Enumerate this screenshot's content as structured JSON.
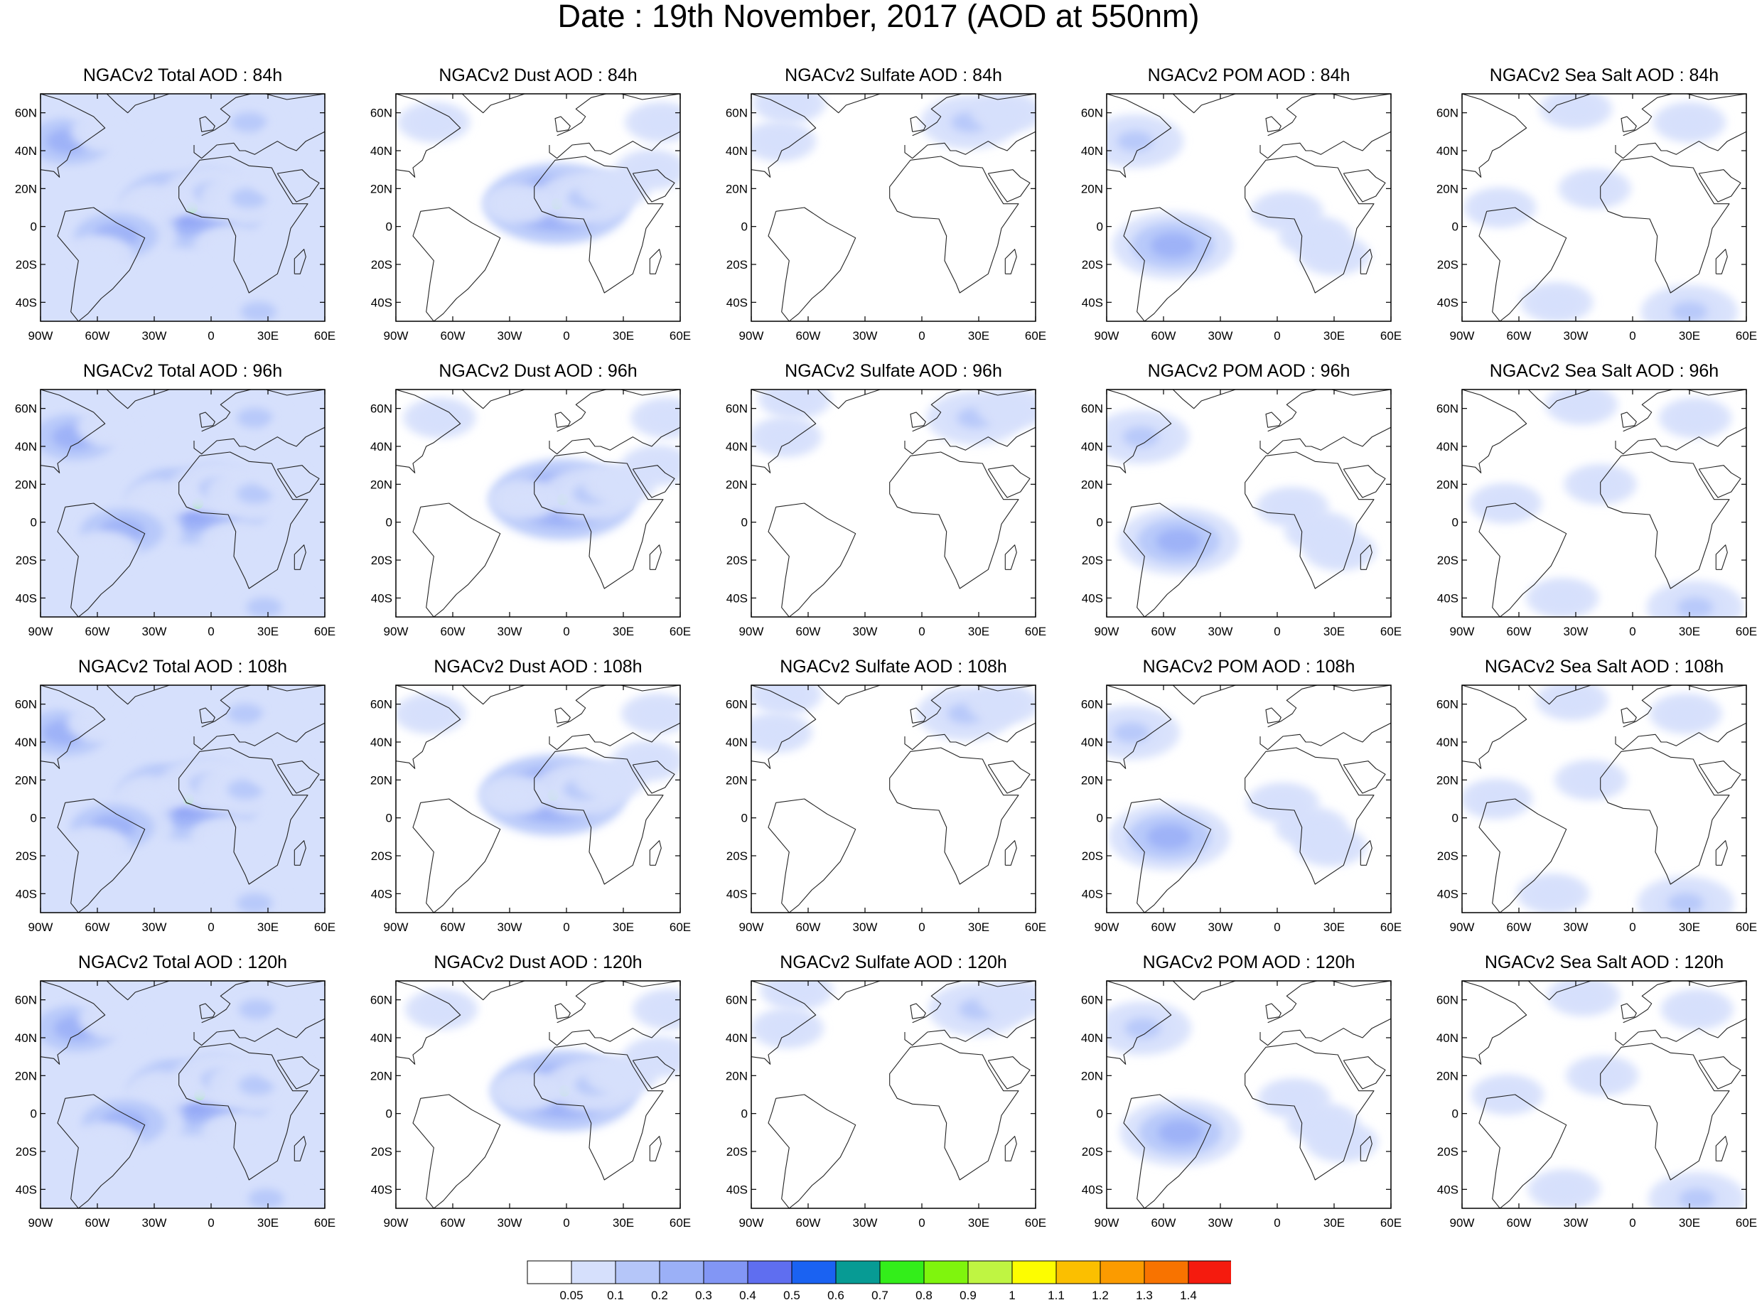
{
  "figure": {
    "title": "Date : 19th November, 2017 (AOD at 550nm)"
  },
  "map_axes": {
    "lon_labels": [
      "90W",
      "60W",
      "30W",
      "0",
      "30E",
      "60E"
    ],
    "lon_values": [
      -90,
      -60,
      -30,
      0,
      30,
      60
    ],
    "lat_labels": [
      "60N",
      "40N",
      "20N",
      "0",
      "20S",
      "40S"
    ],
    "lat_values": [
      60,
      40,
      20,
      0,
      -20,
      -40
    ],
    "lon_range": [
      -90,
      60
    ],
    "lat_range": [
      -50,
      70
    ]
  },
  "panels": [
    {
      "title": "NGACv2 Total AOD : 84h",
      "species": "total",
      "lead_hours": 84
    },
    {
      "title": "NGACv2 Dust AOD : 84h",
      "species": "dust",
      "lead_hours": 84
    },
    {
      "title": "NGACv2 Sulfate AOD : 84h",
      "species": "sulfate",
      "lead_hours": 84
    },
    {
      "title": "NGACv2 POM AOD : 84h",
      "species": "pom",
      "lead_hours": 84
    },
    {
      "title": "NGACv2 Sea Salt AOD : 84h",
      "species": "seasalt",
      "lead_hours": 84
    },
    {
      "title": "NGACv2 Total AOD : 96h",
      "species": "total",
      "lead_hours": 96
    },
    {
      "title": "NGACv2 Dust AOD : 96h",
      "species": "dust",
      "lead_hours": 96
    },
    {
      "title": "NGACv2 Sulfate AOD : 96h",
      "species": "sulfate",
      "lead_hours": 96
    },
    {
      "title": "NGACv2 POM AOD : 96h",
      "species": "pom",
      "lead_hours": 96
    },
    {
      "title": "NGACv2 Sea Salt AOD : 96h",
      "species": "seasalt",
      "lead_hours": 96
    },
    {
      "title": "NGACv2 Total AOD : 108h",
      "species": "total",
      "lead_hours": 108
    },
    {
      "title": "NGACv2 Dust AOD : 108h",
      "species": "dust",
      "lead_hours": 108
    },
    {
      "title": "NGACv2 Sulfate AOD : 108h",
      "species": "sulfate",
      "lead_hours": 108
    },
    {
      "title": "NGACv2 POM AOD : 108h",
      "species": "pom",
      "lead_hours": 108
    },
    {
      "title": "NGACv2 Sea Salt AOD : 108h",
      "species": "seasalt",
      "lead_hours": 108
    },
    {
      "title": "NGACv2 Total AOD : 120h",
      "species": "total",
      "lead_hours": 120
    },
    {
      "title": "NGACv2 Dust AOD : 120h",
      "species": "dust",
      "lead_hours": 120
    },
    {
      "title": "NGACv2 Sulfate AOD : 120h",
      "species": "sulfate",
      "lead_hours": 120
    },
    {
      "title": "NGACv2 POM AOD : 120h",
      "species": "pom",
      "lead_hours": 120
    },
    {
      "title": "NGACv2 Sea Salt  AOD : 120h",
      "species": "seasalt",
      "lead_hours": 120
    }
  ],
  "colorbar": {
    "labels": [
      "0.05",
      "0.1",
      "0.2",
      "0.3",
      "0.4",
      "0.5",
      "0.6",
      "0.7",
      "0.8",
      "0.9",
      "1",
      "1.1",
      "1.2",
      "1.3",
      "1.4"
    ],
    "colors": [
      "#ffffff",
      "#d6e0fc",
      "#b5c6f9",
      "#9bb0f7",
      "#8296f5",
      "#5f6ef0",
      "#1a62f2",
      "#079b94",
      "#33ee1a",
      "#7ff50d",
      "#bff542",
      "#fdfd00",
      "#fbbf00",
      "#fb9b00",
      "#f87300",
      "#f51b0e"
    ]
  },
  "regions": {
    "total": [
      {
        "lon": -10,
        "lat": 10,
        "level": 4
      },
      {
        "lon": 0,
        "lat": 18,
        "level": 2
      },
      {
        "lon": 20,
        "lat": 15,
        "level": 2
      },
      {
        "lon": 40,
        "lat": 25,
        "level": 1
      },
      {
        "lon": -30,
        "lat": 12,
        "level": 1
      },
      {
        "lon": -50,
        "lat": -5,
        "level": 3
      },
      {
        "lon": -60,
        "lat": -15,
        "level": 1
      },
      {
        "lon": -75,
        "lat": 45,
        "level": 3
      },
      {
        "lon": -55,
        "lat": 50,
        "level": 1
      },
      {
        "lon": 20,
        "lat": 55,
        "level": 2
      },
      {
        "lon": 45,
        "lat": 45,
        "level": 1
      },
      {
        "lon": 10,
        "lat": -10,
        "level": 1
      },
      {
        "lon": 25,
        "lat": -45,
        "level": 2
      },
      {
        "lon": -20,
        "lat": 40,
        "level": 1
      },
      {
        "lon": -60,
        "lat": 65,
        "level": 1
      }
    ],
    "dust": [
      {
        "lon": -5,
        "lat": 12,
        "level": 4
      },
      {
        "lon": 10,
        "lat": 15,
        "level": 2
      },
      {
        "lon": -25,
        "lat": 12,
        "level": 1
      },
      {
        "lon": 25,
        "lat": 20,
        "level": 1
      },
      {
        "lon": 45,
        "lat": 30,
        "level": 1
      },
      {
        "lon": 50,
        "lat": 55,
        "level": 1
      },
      {
        "lon": -70,
        "lat": 55,
        "level": 1
      }
    ],
    "sulfate": [
      {
        "lon": -75,
        "lat": 45,
        "level": 1
      },
      {
        "lon": 25,
        "lat": 55,
        "level": 2
      },
      {
        "lon": 45,
        "lat": 60,
        "level": 1
      },
      {
        "lon": -70,
        "lat": 65,
        "level": 1
      }
    ],
    "pom": [
      {
        "lon": -55,
        "lat": -10,
        "level": 3
      },
      {
        "lon": -75,
        "lat": 45,
        "level": 2
      },
      {
        "lon": 20,
        "lat": -5,
        "level": 1
      },
      {
        "lon": 5,
        "lat": 8,
        "level": 1
      },
      {
        "lon": 30,
        "lat": -15,
        "level": 1
      }
    ],
    "seasalt": [
      {
        "lon": -40,
        "lat": -40,
        "level": 1
      },
      {
        "lon": 30,
        "lat": -45,
        "level": 2
      },
      {
        "lon": -30,
        "lat": 62,
        "level": 1
      },
      {
        "lon": -20,
        "lat": 20,
        "level": 1
      },
      {
        "lon": 30,
        "lat": 55,
        "level": 1
      },
      {
        "lon": -70,
        "lat": 10,
        "level": 1
      }
    ]
  }
}
